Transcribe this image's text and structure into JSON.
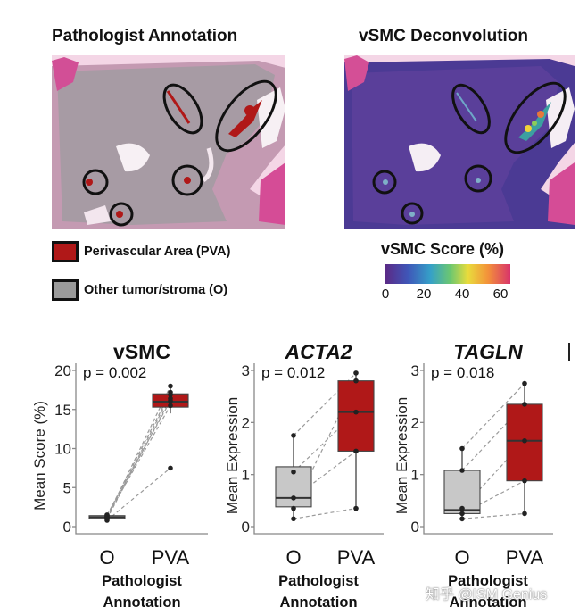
{
  "images": {
    "left_title": "Pathologist Annotation",
    "right_title": "vSMC Deconvolution"
  },
  "legend": {
    "items": [
      {
        "label": "Perivascular Area (PVA)",
        "color": "#b01818"
      },
      {
        "label": "Other tumor/stroma (O)",
        "color": "#9a9a9a"
      }
    ]
  },
  "colorbar": {
    "title": "vSMC Score (%)",
    "ticks": [
      "0",
      "20",
      "40",
      "60"
    ]
  },
  "chart_data": [
    {
      "type": "box",
      "title": "vSMC",
      "title_italic": false,
      "ylabel": "Mean Score (%)",
      "xlabel": "Pathologist Annotation",
      "categories": [
        "O",
        "PVA"
      ],
      "pvalue": "p = 0.002",
      "ylim": [
        0,
        20
      ],
      "yticks": [
        "0",
        "5",
        "10",
        "15",
        "20"
      ],
      "boxes": [
        {
          "q1": 1.0,
          "median": 1.2,
          "q3": 1.4,
          "whisker_low": 0.6,
          "whisker_high": 1.6,
          "color": "#c8c8c8"
        },
        {
          "q1": 15.3,
          "median": 16.0,
          "q3": 17.0,
          "whisker_low": 14.5,
          "whisker_high": 18.0,
          "color": "#b01818"
        }
      ],
      "pairs": [
        [
          1.2,
          18.0
        ],
        [
          1.4,
          17.2
        ],
        [
          1.1,
          16.9
        ],
        [
          1.0,
          16.4
        ],
        [
          1.5,
          16.1
        ],
        [
          1.3,
          15.5
        ],
        [
          0.8,
          7.5
        ]
      ]
    },
    {
      "type": "box",
      "title": "ACTA2",
      "title_italic": true,
      "ylabel": "Mean Expression",
      "xlabel": "Pathologist Annotation",
      "categories": [
        "O",
        "PVA"
      ],
      "pvalue": "p = 0.012",
      "ylim": [
        0,
        3
      ],
      "yticks": [
        "0",
        "1",
        "2",
        "3"
      ],
      "boxes": [
        {
          "q1": 0.38,
          "median": 0.55,
          "q3": 1.15,
          "whisker_low": 0.15,
          "whisker_high": 1.75,
          "color": "#c8c8c8"
        },
        {
          "q1": 1.45,
          "median": 2.2,
          "q3": 2.8,
          "whisker_low": 0.35,
          "whisker_high": 2.95,
          "color": "#b01818"
        }
      ],
      "pairs": [
        [
          1.75,
          2.95
        ],
        [
          1.05,
          2.2
        ],
        [
          0.55,
          1.45
        ],
        [
          0.35,
          2.8
        ],
        [
          0.15,
          0.35
        ]
      ]
    },
    {
      "type": "box",
      "title": "TAGLN",
      "title_italic": true,
      "ylabel": "Mean Expression",
      "xlabel": "Pathologist Annotation",
      "categories": [
        "O",
        "PVA"
      ],
      "pvalue": "p = 0.018",
      "ylim": [
        0,
        3
      ],
      "yticks": [
        "0",
        "1",
        "2",
        "3"
      ],
      "boxes": [
        {
          "q1": 0.25,
          "median": 0.32,
          "q3": 1.08,
          "whisker_low": 0.1,
          "whisker_high": 1.5,
          "color": "#c8c8c8"
        },
        {
          "q1": 0.88,
          "median": 1.65,
          "q3": 2.35,
          "whisker_low": 0.25,
          "whisker_high": 2.75,
          "color": "#b01818"
        }
      ],
      "pairs": [
        [
          1.5,
          2.75
        ],
        [
          1.08,
          2.35
        ],
        [
          0.35,
          1.65
        ],
        [
          0.25,
          0.88
        ],
        [
          0.15,
          0.25
        ]
      ]
    }
  ],
  "watermark": "知乎 @ISM Genius"
}
